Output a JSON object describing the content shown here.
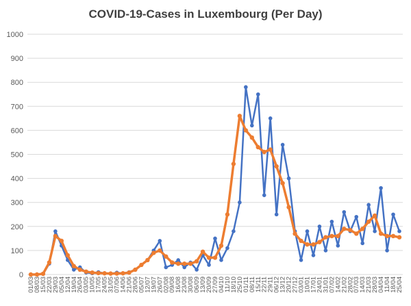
{
  "chart_data": {
    "type": "line",
    "title": "COVID-19-Cases in Luxembourg (Per Day)",
    "xlabel": "",
    "ylabel": "",
    "ylim": [
      0,
      1000
    ],
    "yticks": [
      0,
      100,
      200,
      300,
      400,
      500,
      600,
      700,
      800,
      900,
      1000
    ],
    "grid": true,
    "legend": "none",
    "x": [
      "01/03",
      "08/03",
      "15/03",
      "22/03",
      "29/03",
      "05/04",
      "12/04",
      "19/04",
      "26/04",
      "03/05",
      "10/05",
      "17/05",
      "24/05",
      "31/05",
      "07/06",
      "14/06",
      "21/06",
      "28/06",
      "05/07",
      "12/07",
      "19/07",
      "26/07",
      "02/08",
      "09/08",
      "16/08",
      "23/08",
      "30/08",
      "06/09",
      "13/09",
      "20/09",
      "27/09",
      "04/10",
      "11/10",
      "18/10",
      "25/10",
      "01/11",
      "08/11",
      "15/11",
      "22/11",
      "29/11",
      "06/12",
      "13/12",
      "20/12",
      "27/12",
      "03/01",
      "10/01",
      "17/01",
      "24/01",
      "31/01",
      "07/02",
      "14/02",
      "21/02",
      "28/02",
      "07/03",
      "14/03",
      "21/03",
      "28/03",
      "04/04",
      "11/04",
      "18/04",
      "25/04"
    ],
    "xtick_labels": [
      "01/03",
      "08/03",
      "15/03",
      "22/03",
      "29/03",
      "05/04",
      "12/04",
      "19/04",
      "26/04",
      "03/05",
      "10/05",
      "17/05",
      "24/05",
      "31/05",
      "07/06",
      "14/06",
      "21/06",
      "28/06",
      "05/07",
      "12/07",
      "19/07",
      "26/07",
      "02/08",
      "09/08",
      "16/08",
      "23/08",
      "30/08",
      "06/09",
      "13/09",
      "20/09",
      "27/09",
      "04/10",
      "11/10",
      "18/10",
      "25/10",
      "01/11",
      "08/11",
      "15/11",
      "22/11",
      "29/11",
      "06/12",
      "13/12",
      "20/12",
      "27/12",
      "03/01",
      "10/01",
      "17/01",
      "24/01",
      "31/01",
      "07/02",
      "14/02",
      "21/02",
      "28/02",
      "07/03",
      "14/03",
      "21/03",
      "28/03",
      "04/04",
      "11/04",
      "18/04",
      "25/04"
    ],
    "series": [
      {
        "color": "#4472C4",
        "values": [
          0,
          0,
          2,
          45,
          180,
          120,
          60,
          20,
          30,
          8,
          5,
          10,
          5,
          3,
          8,
          5,
          10,
          20,
          40,
          60,
          100,
          140,
          30,
          40,
          60,
          30,
          50,
          20,
          80,
          40,
          150,
          60,
          110,
          180,
          300,
          780,
          620,
          750,
          330,
          650,
          250,
          540,
          400,
          180,
          60,
          180,
          80,
          200,
          100,
          220,
          120,
          260,
          180,
          240,
          130,
          290,
          180,
          360,
          100,
          250,
          180
        ]
      },
      {
        "color": "#ED7D31",
        "values": [
          0,
          0,
          3,
          50,
          160,
          140,
          80,
          35,
          20,
          12,
          8,
          6,
          5,
          4,
          4,
          5,
          8,
          20,
          40,
          60,
          90,
          100,
          75,
          50,
          45,
          45,
          45,
          55,
          95,
          70,
          70,
          120,
          250,
          460,
          660,
          600,
          570,
          530,
          510,
          520,
          450,
          380,
          280,
          170,
          140,
          125,
          125,
          135,
          155,
          160,
          160,
          190,
          185,
          170,
          190,
          220,
          245,
          170,
          160,
          160,
          155
        ]
      }
    ]
  }
}
